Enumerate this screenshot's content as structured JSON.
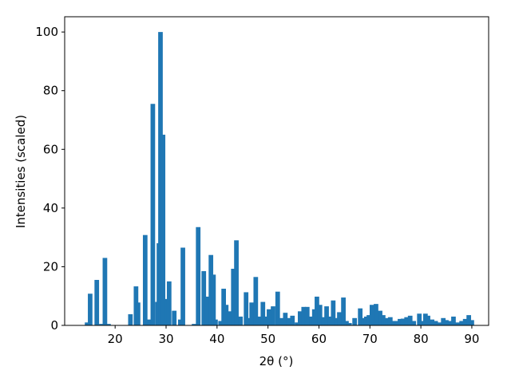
{
  "chart_data": {
    "type": "bar",
    "xlabel": "2θ (°)",
    "ylabel": "Intensities (scaled)",
    "color": "#1f77b4",
    "x": [
      14.5,
      15.1,
      16.4,
      17.3,
      18.0,
      18.7,
      23.0,
      24.1,
      24.5,
      25.9,
      26.7,
      27.4,
      28.3,
      28.6,
      28.9,
      29.4,
      30.0,
      30.6,
      31.6,
      32.8,
      33.3,
      35.5,
      36.3,
      37.4,
      38.0,
      38.8,
      39.3,
      39.7,
      40.7,
      41.3,
      41.8,
      42.5,
      43.2,
      43.8,
      44.6,
      45.7,
      46.3,
      46.8,
      47.6,
      48.2,
      49.0,
      49.6,
      50.2,
      51.0,
      51.9,
      52.6,
      53.4,
      54.1,
      54.8,
      55.7,
      56.3,
      57.0,
      57.7,
      58.5,
      59.1,
      59.6,
      60.2,
      60.9,
      61.5,
      62.1,
      62.8,
      63.4,
      64.0,
      64.8,
      65.4,
      66.0,
      67.0,
      68.1,
      68.7,
      69.3,
      69.8,
      70.4,
      71.2,
      72.0,
      72.6,
      73.2,
      74.0,
      74.7,
      75.3,
      75.9,
      76.5,
      77.2,
      77.9,
      78.6,
      79.7,
      80.3,
      80.9,
      81.4,
      82.2,
      82.9,
      83.6,
      84.4,
      85.0,
      85.8,
      86.4,
      87.2,
      88.0,
      88.7,
      89.4,
      90.0
    ],
    "values": [
      1,
      10.8,
      15.5,
      0.5,
      23,
      0.5,
      3.8,
      13.3,
      7.8,
      30.8,
      2,
      75.5,
      8,
      28,
      100,
      65,
      9,
      15,
      5,
      2,
      26.5,
      0.5,
      33.5,
      18.5,
      9.8,
      24,
      17.3,
      2,
      1.5,
      12.5,
      7,
      4.8,
      19.3,
      29,
      3,
      11.3,
      2.5,
      7.8,
      16.5,
      3,
      8,
      3,
      5.5,
      6.5,
      11.5,
      2.5,
      4.3,
      2.5,
      3.3,
      1,
      4.8,
      6.3,
      6.3,
      3,
      5.5,
      9.8,
      7,
      2.8,
      6.5,
      3,
      8.5,
      2.5,
      4.5,
      9.5,
      1.5,
      0.8,
      2.5,
      5.8,
      2.5,
      3,
      3.5,
      7,
      7.3,
      5,
      3.5,
      2.5,
      2.8,
      1.5,
      1.5,
      2.2,
      2.3,
      2.8,
      3.3,
      1.5,
      4,
      1.5,
      4,
      3.3,
      2,
      1.5,
      1,
      2.5,
      1.8,
      1.5,
      3,
      1,
      1.5,
      2.2,
      3.5,
      1.8
    ],
    "xlim": [
      10.1,
      93.3
    ],
    "xticks": [
      20,
      30,
      40,
      50,
      60,
      70,
      80,
      90
    ],
    "ylim": [
      0,
      105.2
    ],
    "yticks": [
      0,
      20,
      40,
      60,
      80,
      100
    ]
  }
}
